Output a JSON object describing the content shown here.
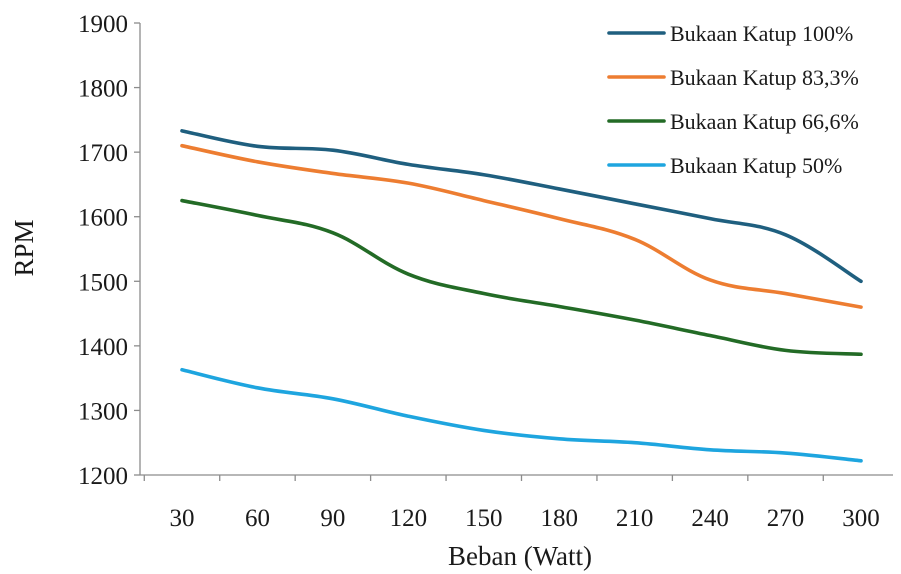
{
  "chart_data": {
    "type": "line",
    "title": "",
    "xlabel": "Beban (Watt)",
    "ylabel": "RPM",
    "categories": [
      "30",
      "60",
      "90",
      "120",
      "150",
      "180",
      "210",
      "240",
      "270",
      "300"
    ],
    "x": [
      30,
      60,
      90,
      120,
      150,
      180,
      210,
      240,
      270,
      300
    ],
    "ylim": [
      1200,
      1900
    ],
    "yticks": [
      "1200",
      "1300",
      "1400",
      "1500",
      "1600",
      "1700",
      "1800",
      "1900"
    ],
    "grid": false,
    "legend_position": "top-right",
    "series": [
      {
        "name": "Bukaan Katup 100%",
        "color": "#1f5f7f",
        "values": [
          1733,
          1709,
          1703,
          1681,
          1665,
          1643,
          1620,
          1597,
          1572,
          1500
        ]
      },
      {
        "name": "Bukaan Katup 83,3%",
        "color": "#ed7d31",
        "values": [
          1710,
          1685,
          1667,
          1652,
          1625,
          1597,
          1565,
          1502,
          1481,
          1460
        ]
      },
      {
        "name": "Bukaan Katup 66,6%",
        "color": "#236b26",
        "values": [
          1625,
          1602,
          1575,
          1511,
          1481,
          1461,
          1440,
          1416,
          1393,
          1387
        ]
      },
      {
        "name": "Bukaan Katup 50%",
        "color": "#1ea5df",
        "values": [
          1363,
          1335,
          1318,
          1291,
          1269,
          1256,
          1250,
          1239,
          1234,
          1222
        ]
      }
    ]
  }
}
